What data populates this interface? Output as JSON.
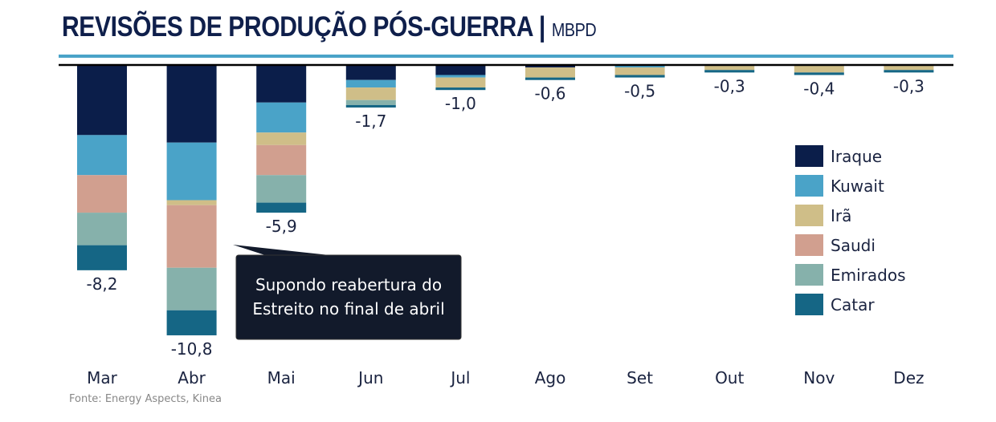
{
  "header": {
    "title": "REVISÕES DE PRODUÇÃO PÓS-GUERRA",
    "separator": "|",
    "unit": "MBPD"
  },
  "source": "Fonte: Energy Aspects, Kinea",
  "annotation": {
    "line1": "Supondo reabertura do",
    "line2": "Estreito no final de abril"
  },
  "colors": {
    "Iraque": "#0b1e4a",
    "Kuwait": "#4aa3c8",
    "Irã": "#cfbe88",
    "Saudi": "#d19f8f",
    "Emirados": "#86b1ab",
    "Catar": "#156685"
  },
  "chart_data": {
    "type": "bar",
    "stacked": true,
    "title": "REVISÕES DE PRODUÇÃO PÓS-GUERRA | MBPD",
    "xlabel": "",
    "ylabel": "MBPD",
    "ylim": [
      -11,
      0
    ],
    "legend": "right",
    "categories": [
      "Mar",
      "Abr",
      "Mai",
      "Jun",
      "Jul",
      "Ago",
      "Set",
      "Out",
      "Nov",
      "Dez"
    ],
    "totals": [
      "-8,2",
      "-10,8",
      "-5,9",
      "-1,7",
      "-1,0",
      "-0,6",
      "-0,5",
      "-0,3",
      "-0,4",
      "-0,3"
    ],
    "series": [
      {
        "name": "Iraque",
        "values": [
          -2.8,
          -3.1,
          -1.5,
          -0.6,
          -0.4,
          -0.1,
          0,
          0,
          0,
          0
        ]
      },
      {
        "name": "Kuwait",
        "values": [
          -1.6,
          -2.3,
          -1.2,
          -0.3,
          -0.1,
          0,
          -0.1,
          0,
          0,
          0
        ]
      },
      {
        "name": "Irã",
        "values": [
          0,
          -0.2,
          -0.5,
          -0.5,
          -0.4,
          -0.4,
          -0.3,
          -0.2,
          -0.3,
          -0.2
        ]
      },
      {
        "name": "Saudi",
        "values": [
          -1.5,
          -2.5,
          -1.2,
          0,
          0,
          0,
          0,
          0,
          0,
          0
        ]
      },
      {
        "name": "Emirados",
        "values": [
          -1.3,
          -1.7,
          -1.1,
          -0.2,
          0,
          0,
          0,
          0,
          0,
          0
        ]
      },
      {
        "name": "Catar",
        "values": [
          -1.0,
          -1.0,
          -0.4,
          -0.1,
          -0.1,
          -0.1,
          -0.1,
          -0.1,
          -0.1,
          -0.1
        ]
      }
    ]
  }
}
